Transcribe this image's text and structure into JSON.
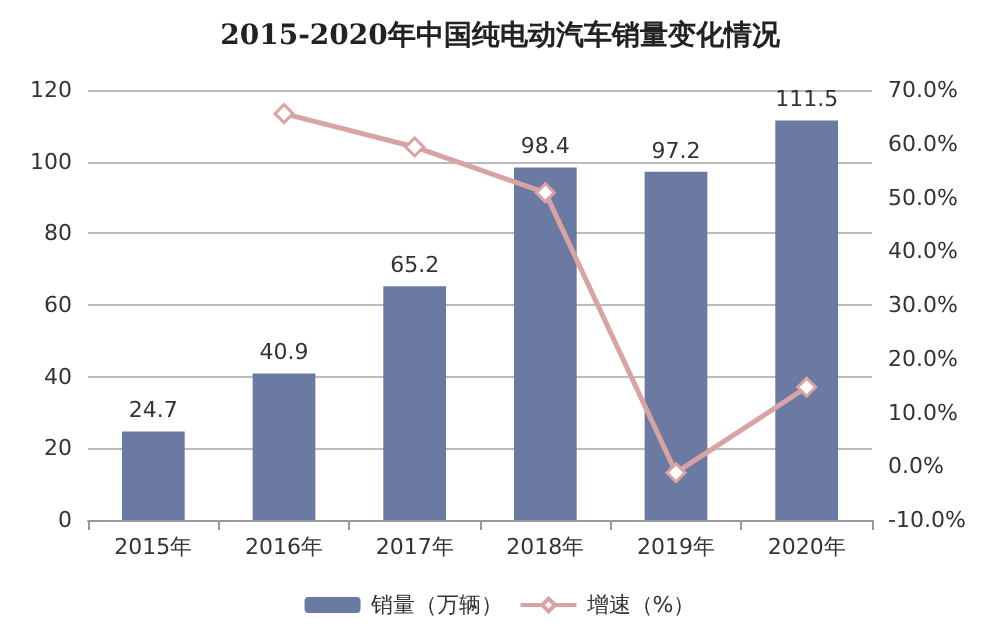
{
  "chart_data": {
    "type": "bar",
    "title": "2015-2020年中国纯电动汽车销量变化情况",
    "categories": [
      "2015年",
      "2016年",
      "2017年",
      "2018年",
      "2019年",
      "2020年"
    ],
    "series": [
      {
        "name": "销量（万辆）",
        "color": "#6a7aa3",
        "values": [
          24.7,
          40.9,
          65.2,
          98.4,
          97.2,
          111.5
        ],
        "value_labels": [
          "24.7",
          "40.9",
          "65.2",
          "98.4",
          "97.2",
          "111.5"
        ]
      },
      {
        "name": "增速（%）",
        "type": "line",
        "axis": "y2",
        "color": "#d9a3a3",
        "marker": "diamond",
        "values": [
          null,
          65.6,
          59.4,
          50.9,
          -1.2,
          14.7
        ]
      }
    ],
    "ylim": [
      0,
      120
    ],
    "yticks": [
      0,
      20,
      40,
      60,
      80,
      100,
      120
    ],
    "y2lim": [
      -10,
      70
    ],
    "y2ticks": [
      {
        "value": -10,
        "label": "-10.0%"
      },
      {
        "value": 0,
        "label": "0.0%"
      },
      {
        "value": 10,
        "label": "10.0%"
      },
      {
        "value": 20,
        "label": "20.0%"
      },
      {
        "value": 30,
        "label": "30.0%"
      },
      {
        "value": 40,
        "label": "40.0%"
      },
      {
        "value": 50,
        "label": "50.0%"
      },
      {
        "value": 60,
        "label": "60.0%"
      },
      {
        "value": 70,
        "label": "70.0%"
      }
    ],
    "grid": "y",
    "legend": "bottom"
  }
}
